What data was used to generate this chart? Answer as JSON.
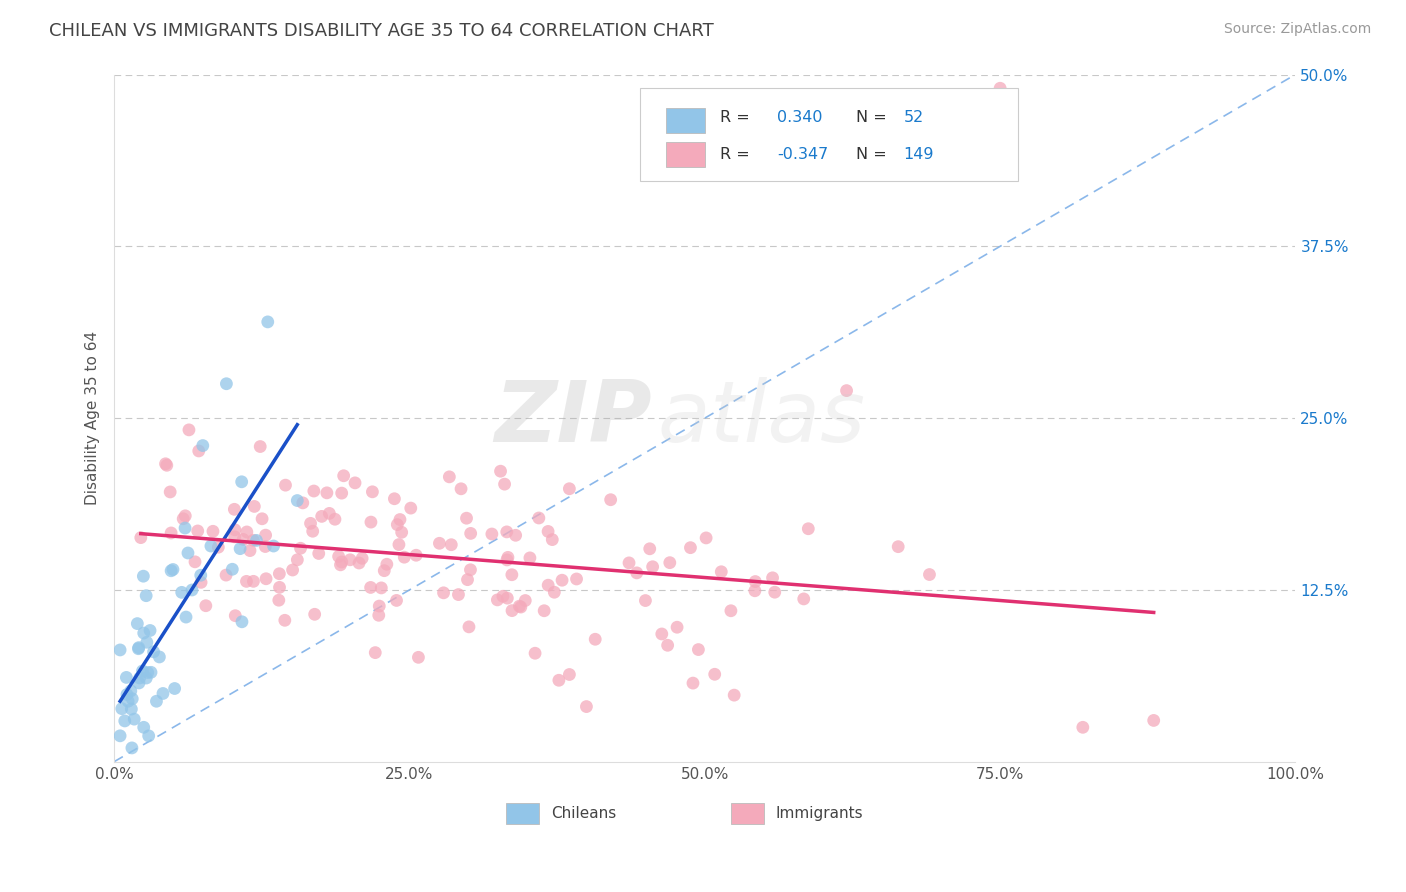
{
  "title": "CHILEAN VS IMMIGRANTS DISABILITY AGE 35 TO 64 CORRELATION CHART",
  "source": "Source: ZipAtlas.com",
  "ylabel": "Disability Age 35 to 64",
  "xlim": [
    0.0,
    1.0
  ],
  "ylim": [
    0.0,
    0.5
  ],
  "xticks": [
    0.0,
    0.25,
    0.5,
    0.75,
    1.0
  ],
  "xticklabels": [
    "0.0%",
    "25.0%",
    "50.0%",
    "75.0%",
    "100.0%"
  ],
  "yticks": [
    0.0,
    0.125,
    0.25,
    0.375,
    0.5
  ],
  "yticklabels": [
    "",
    "12.5%",
    "25.0%",
    "37.5%",
    "50.0%"
  ],
  "chileans_R": 0.34,
  "chileans_N": 52,
  "immigrants_R": -0.347,
  "immigrants_N": 149,
  "chileans_color": "#92C5E8",
  "immigrants_color": "#F4AABB",
  "chileans_line_color": "#1A50C8",
  "immigrants_line_color": "#E03070",
  "ref_line_color": "#7EB0E8",
  "background_color": "#FFFFFF",
  "grid_color": "#C8C8C8",
  "title_color": "#444444",
  "legend_text_color": "#1A7ACC",
  "axis_text_color": "#555555",
  "watermark_zip_color": "#AAAAAA",
  "watermark_atlas_color": "#CCCCCC"
}
